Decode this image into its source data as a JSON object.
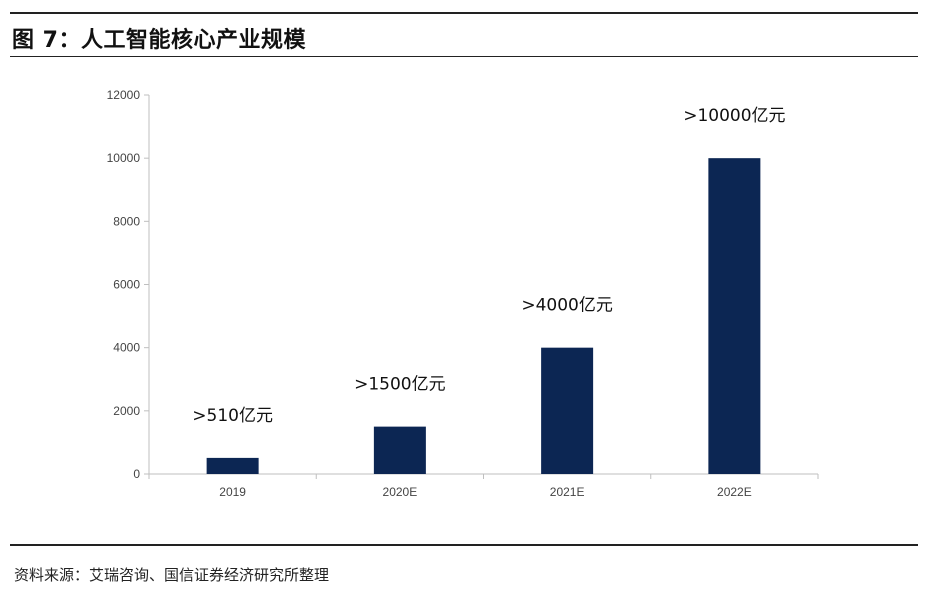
{
  "figure": {
    "title": "图 7：人工智能核心产业规模",
    "source": "资料来源：艾瑞咨询、国信证券经济研究所整理"
  },
  "chart_data": {
    "type": "bar",
    "categories": [
      "2019",
      "2020E",
      "2021E",
      "2022E"
    ],
    "values": [
      510,
      1500,
      4000,
      10000
    ],
    "data_labels": [
      ">510亿元",
      ">1500亿元",
      ">4000亿元",
      ">10000亿元"
    ],
    "title": "",
    "xlabel": "",
    "ylabel": "",
    "ylim": [
      0,
      12000
    ],
    "yticks": [
      0,
      2000,
      4000,
      6000,
      8000,
      10000,
      12000
    ],
    "grid": false,
    "legend": "none",
    "colors": {
      "bar": "#0c2653",
      "axis": "#bfbfbf"
    }
  }
}
